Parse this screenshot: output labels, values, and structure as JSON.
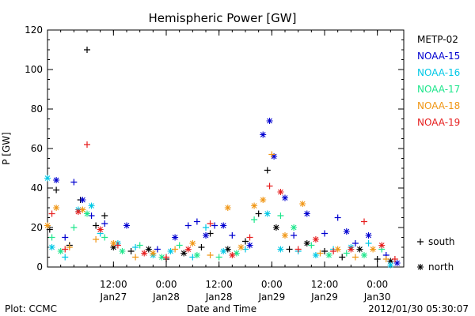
{
  "chart_data": {
    "type": "scatter",
    "title": "Hemispheric Power [GW]",
    "xlabel": "Date and Time",
    "ylabel": "P [GW]",
    "ylim": [
      0,
      120
    ],
    "yticks": [
      0,
      20,
      40,
      60,
      80,
      100,
      120
    ],
    "xlim": [
      "2012-01-26T21:00",
      "2012-01-30T06:00"
    ],
    "xticks": [
      {
        "t": "2012-01-27T12:00",
        "line1": "12:00",
        "line2": "Jan27"
      },
      {
        "t": "2012-01-28T00:00",
        "line1": "0:00",
        "line2": "Jan28"
      },
      {
        "t": "2012-01-28T12:00",
        "line1": "12:00",
        "line2": "Jan28"
      },
      {
        "t": "2012-01-29T00:00",
        "line1": "0:00",
        "line2": "Jan29"
      },
      {
        "t": "2012-01-29T12:00",
        "line1": "12:00",
        "line2": "Jan29"
      },
      {
        "t": "2012-01-30T00:00",
        "line1": "0:00",
        "line2": "Jan30"
      }
    ],
    "legend_placement": "right",
    "marker_legend": [
      {
        "symbol": "+",
        "label": "south"
      },
      {
        "symbol": "*",
        "label": "north"
      }
    ],
    "series": [
      {
        "name": "METP-02",
        "color": "#000000",
        "points": [
          {
            "t": "2012-01-26T21:30",
            "y": 19,
            "m": "+"
          },
          {
            "t": "2012-01-26T23:00",
            "y": 39,
            "m": "+"
          },
          {
            "t": "2012-01-27T02:00",
            "y": 11,
            "m": "+"
          },
          {
            "t": "2012-01-27T04:30",
            "y": 34,
            "m": "+"
          },
          {
            "t": "2012-01-27T06:00",
            "y": 110,
            "m": "+"
          },
          {
            "t": "2012-01-27T08:00",
            "y": 21,
            "m": "+"
          },
          {
            "t": "2012-01-27T10:00",
            "y": 26,
            "m": "+"
          },
          {
            "t": "2012-01-27T12:00",
            "y": 10,
            "m": "*"
          },
          {
            "t": "2012-01-27T16:00",
            "y": 8,
            "m": "+"
          },
          {
            "t": "2012-01-27T20:00",
            "y": 9,
            "m": "*"
          },
          {
            "t": "2012-01-28T00:00",
            "y": 4,
            "m": "+"
          },
          {
            "t": "2012-01-28T04:00",
            "y": 7,
            "m": "*"
          },
          {
            "t": "2012-01-28T08:00",
            "y": 10,
            "m": "+"
          },
          {
            "t": "2012-01-28T10:00",
            "y": 17,
            "m": "+"
          },
          {
            "t": "2012-01-28T14:00",
            "y": 9,
            "m": "*"
          },
          {
            "t": "2012-01-28T18:00",
            "y": 13,
            "m": "+"
          },
          {
            "t": "2012-01-28T21:00",
            "y": 27,
            "m": "+"
          },
          {
            "t": "2012-01-28T23:00",
            "y": 49,
            "m": "+"
          },
          {
            "t": "2012-01-29T01:00",
            "y": 20,
            "m": "*"
          },
          {
            "t": "2012-01-29T04:00",
            "y": 9,
            "m": "+"
          },
          {
            "t": "2012-01-29T08:00",
            "y": 12,
            "m": "*"
          },
          {
            "t": "2012-01-29T12:00",
            "y": 8,
            "m": "+"
          },
          {
            "t": "2012-01-29T16:00",
            "y": 5,
            "m": "+"
          },
          {
            "t": "2012-01-29T20:00",
            "y": 9,
            "m": "*"
          },
          {
            "t": "2012-01-30T00:00",
            "y": 4,
            "m": "+"
          },
          {
            "t": "2012-01-30T03:00",
            "y": 3,
            "m": "*"
          }
        ]
      },
      {
        "name": "NOAA-15",
        "color": "#0000d0",
        "points": [
          {
            "t": "2012-01-26T23:00",
            "y": 44,
            "m": "*"
          },
          {
            "t": "2012-01-27T01:00",
            "y": 15,
            "m": "+"
          },
          {
            "t": "2012-01-27T03:00",
            "y": 43,
            "m": "+"
          },
          {
            "t": "2012-01-27T05:00",
            "y": 34,
            "m": "*"
          },
          {
            "t": "2012-01-27T07:00",
            "y": 26,
            "m": "+"
          },
          {
            "t": "2012-01-27T10:00",
            "y": 22,
            "m": "+"
          },
          {
            "t": "2012-01-27T15:00",
            "y": 21,
            "m": "*"
          },
          {
            "t": "2012-01-27T22:00",
            "y": 9,
            "m": "+"
          },
          {
            "t": "2012-01-28T02:00",
            "y": 15,
            "m": "*"
          },
          {
            "t": "2012-01-28T05:00",
            "y": 21,
            "m": "+"
          },
          {
            "t": "2012-01-28T07:00",
            "y": 23,
            "m": "+"
          },
          {
            "t": "2012-01-28T09:00",
            "y": 16,
            "m": "*"
          },
          {
            "t": "2012-01-28T11:00",
            "y": 21,
            "m": "+"
          },
          {
            "t": "2012-01-28T13:00",
            "y": 21,
            "m": "*"
          },
          {
            "t": "2012-01-28T15:00",
            "y": 16,
            "m": "+"
          },
          {
            "t": "2012-01-28T19:00",
            "y": 11,
            "m": "*"
          },
          {
            "t": "2012-01-28T22:00",
            "y": 67,
            "m": "*"
          },
          {
            "t": "2012-01-28T23:30",
            "y": 74,
            "m": "*"
          },
          {
            "t": "2012-01-29T00:30",
            "y": 56,
            "m": "*"
          },
          {
            "t": "2012-01-29T03:00",
            "y": 35,
            "m": "*"
          },
          {
            "t": "2012-01-29T05:00",
            "y": 16,
            "m": "+"
          },
          {
            "t": "2012-01-29T08:00",
            "y": 27,
            "m": "*"
          },
          {
            "t": "2012-01-29T12:00",
            "y": 17,
            "m": "+"
          },
          {
            "t": "2012-01-29T15:00",
            "y": 25,
            "m": "+"
          },
          {
            "t": "2012-01-29T17:00",
            "y": 18,
            "m": "*"
          },
          {
            "t": "2012-01-29T19:00",
            "y": 12,
            "m": "+"
          },
          {
            "t": "2012-01-29T22:00",
            "y": 16,
            "m": "*"
          },
          {
            "t": "2012-01-30T02:00",
            "y": 6,
            "m": "+"
          },
          {
            "t": "2012-01-30T04:30",
            "y": 2,
            "m": "*"
          }
        ]
      },
      {
        "name": "NOAA-16",
        "color": "#00c8e6",
        "points": [
          {
            "t": "2012-01-26T21:00",
            "y": 45,
            "m": "*"
          },
          {
            "t": "2012-01-26T22:00",
            "y": 10,
            "m": "*"
          },
          {
            "t": "2012-01-27T01:00",
            "y": 5,
            "m": "+"
          },
          {
            "t": "2012-01-27T04:00",
            "y": 29,
            "m": "*"
          },
          {
            "t": "2012-01-27T07:00",
            "y": 31,
            "m": "*"
          },
          {
            "t": "2012-01-27T09:00",
            "y": 17,
            "m": "+"
          },
          {
            "t": "2012-01-27T13:00",
            "y": 12,
            "m": "*"
          },
          {
            "t": "2012-01-27T17:00",
            "y": 10,
            "m": "+"
          },
          {
            "t": "2012-01-27T21:00",
            "y": 6,
            "m": "*"
          },
          {
            "t": "2012-01-28T01:00",
            "y": 8,
            "m": "*"
          },
          {
            "t": "2012-01-28T06:00",
            "y": 5,
            "m": "+"
          },
          {
            "t": "2012-01-28T09:00",
            "y": 20,
            "m": "+"
          },
          {
            "t": "2012-01-28T13:00",
            "y": 8,
            "m": "*"
          },
          {
            "t": "2012-01-28T18:00",
            "y": 9,
            "m": "+"
          },
          {
            "t": "2012-01-28T23:00",
            "y": 27,
            "m": "*"
          },
          {
            "t": "2012-01-29T02:00",
            "y": 9,
            "m": "*"
          },
          {
            "t": "2012-01-29T06:00",
            "y": 8,
            "m": "+"
          },
          {
            "t": "2012-01-29T10:00",
            "y": 6,
            "m": "*"
          },
          {
            "t": "2012-01-29T14:00",
            "y": 9,
            "m": "+"
          },
          {
            "t": "2012-01-29T18:00",
            "y": 10,
            "m": "*"
          },
          {
            "t": "2012-01-29T22:00",
            "y": 12,
            "m": "+"
          },
          {
            "t": "2012-01-30T03:00",
            "y": 1,
            "m": "*"
          }
        ]
      },
      {
        "name": "NOAA-17",
        "color": "#1ee68c",
        "points": [
          {
            "t": "2012-01-26T22:00",
            "y": 15,
            "m": "+"
          },
          {
            "t": "2012-01-27T00:00",
            "y": 8,
            "m": "*"
          },
          {
            "t": "2012-01-27T03:00",
            "y": 20,
            "m": "+"
          },
          {
            "t": "2012-01-27T06:00",
            "y": 27,
            "m": "*"
          },
          {
            "t": "2012-01-27T10:00",
            "y": 15,
            "m": "+"
          },
          {
            "t": "2012-01-27T14:00",
            "y": 8,
            "m": "*"
          },
          {
            "t": "2012-01-27T18:00",
            "y": 11,
            "m": "+"
          },
          {
            "t": "2012-01-27T23:00",
            "y": 5,
            "m": "*"
          },
          {
            "t": "2012-01-28T03:00",
            "y": 11,
            "m": "+"
          },
          {
            "t": "2012-01-28T07:00",
            "y": 6,
            "m": "*"
          },
          {
            "t": "2012-01-28T12:00",
            "y": 5,
            "m": "+"
          },
          {
            "t": "2012-01-28T16:00",
            "y": 7,
            "m": "*"
          },
          {
            "t": "2012-01-28T20:00",
            "y": 24,
            "m": "+"
          },
          {
            "t": "2012-01-29T02:00",
            "y": 26,
            "m": "+"
          },
          {
            "t": "2012-01-29T05:00",
            "y": 20,
            "m": "*"
          },
          {
            "t": "2012-01-29T09:00",
            "y": 11,
            "m": "+"
          },
          {
            "t": "2012-01-29T13:00",
            "y": 6,
            "m": "*"
          },
          {
            "t": "2012-01-29T17:00",
            "y": 7,
            "m": "+"
          },
          {
            "t": "2012-01-29T21:00",
            "y": 6,
            "m": "*"
          },
          {
            "t": "2012-01-30T01:00",
            "y": 9,
            "m": "+"
          }
        ]
      },
      {
        "name": "NOAA-18",
        "color": "#f09614",
        "points": [
          {
            "t": "2012-01-26T21:00",
            "y": 21,
            "m": "*"
          },
          {
            "t": "2012-01-26T23:00",
            "y": 30,
            "m": "*"
          },
          {
            "t": "2012-01-27T02:00",
            "y": 10,
            "m": "+"
          },
          {
            "t": "2012-01-27T05:00",
            "y": 29,
            "m": "*"
          },
          {
            "t": "2012-01-27T08:00",
            "y": 14,
            "m": "+"
          },
          {
            "t": "2012-01-27T12:00",
            "y": 12,
            "m": "*"
          },
          {
            "t": "2012-01-27T17:00",
            "y": 5,
            "m": "+"
          },
          {
            "t": "2012-01-27T21:00",
            "y": 7,
            "m": "*"
          },
          {
            "t": "2012-01-28T02:00",
            "y": 9,
            "m": "+"
          },
          {
            "t": "2012-01-28T06:00",
            "y": 12,
            "m": "*"
          },
          {
            "t": "2012-01-28T10:00",
            "y": 6,
            "m": "+"
          },
          {
            "t": "2012-01-28T14:00",
            "y": 30,
            "m": "*"
          },
          {
            "t": "2012-01-28T17:00",
            "y": 10,
            "m": "*"
          },
          {
            "t": "2012-01-28T20:00",
            "y": 31,
            "m": "*"
          },
          {
            "t": "2012-01-28T22:00",
            "y": 34,
            "m": "*"
          },
          {
            "t": "2012-01-29T00:00",
            "y": 57,
            "m": "+"
          },
          {
            "t": "2012-01-29T03:00",
            "y": 16,
            "m": "*"
          },
          {
            "t": "2012-01-29T07:00",
            "y": 32,
            "m": "*"
          },
          {
            "t": "2012-01-29T11:00",
            "y": 7,
            "m": "+"
          },
          {
            "t": "2012-01-29T15:00",
            "y": 9,
            "m": "*"
          },
          {
            "t": "2012-01-29T19:00",
            "y": 5,
            "m": "+"
          },
          {
            "t": "2012-01-29T23:00",
            "y": 9,
            "m": "*"
          },
          {
            "t": "2012-01-30T02:00",
            "y": 4,
            "m": "+"
          }
        ]
      },
      {
        "name": "NOAA-19",
        "color": "#e61e1e",
        "points": [
          {
            "t": "2012-01-26T22:00",
            "y": 27,
            "m": "+"
          },
          {
            "t": "2012-01-27T01:00",
            "y": 9,
            "m": "+"
          },
          {
            "t": "2012-01-27T04:00",
            "y": 28,
            "m": "*"
          },
          {
            "t": "2012-01-27T06:00",
            "y": 62,
            "m": "+"
          },
          {
            "t": "2012-01-27T09:00",
            "y": 19,
            "m": "*"
          },
          {
            "t": "2012-01-27T13:00",
            "y": 11,
            "m": "+"
          },
          {
            "t": "2012-01-27T19:00",
            "y": 7,
            "m": "*"
          },
          {
            "t": "2012-01-28T00:00",
            "y": 5,
            "m": "+"
          },
          {
            "t": "2012-01-28T05:00",
            "y": 9,
            "m": "*"
          },
          {
            "t": "2012-01-28T10:00",
            "y": 22,
            "m": "+"
          },
          {
            "t": "2012-01-28T15:00",
            "y": 6,
            "m": "*"
          },
          {
            "t": "2012-01-28T19:00",
            "y": 15,
            "m": "+"
          },
          {
            "t": "2012-01-28T23:30",
            "y": 41,
            "m": "+"
          },
          {
            "t": "2012-01-29T02:00",
            "y": 38,
            "m": "*"
          },
          {
            "t": "2012-01-29T06:00",
            "y": 9,
            "m": "+"
          },
          {
            "t": "2012-01-29T10:00",
            "y": 14,
            "m": "*"
          },
          {
            "t": "2012-01-29T14:00",
            "y": 8,
            "m": "+"
          },
          {
            "t": "2012-01-29T18:00",
            "y": 9,
            "m": "*"
          },
          {
            "t": "2012-01-29T21:00",
            "y": 23,
            "m": "+"
          },
          {
            "t": "2012-01-30T01:00",
            "y": 11,
            "m": "*"
          },
          {
            "t": "2012-01-30T04:00",
            "y": 4,
            "m": "+"
          }
        ]
      }
    ]
  },
  "footer": {
    "plot_credit": "Plot: CCMC",
    "timestamp": "2012/01/30 05:30:07"
  }
}
